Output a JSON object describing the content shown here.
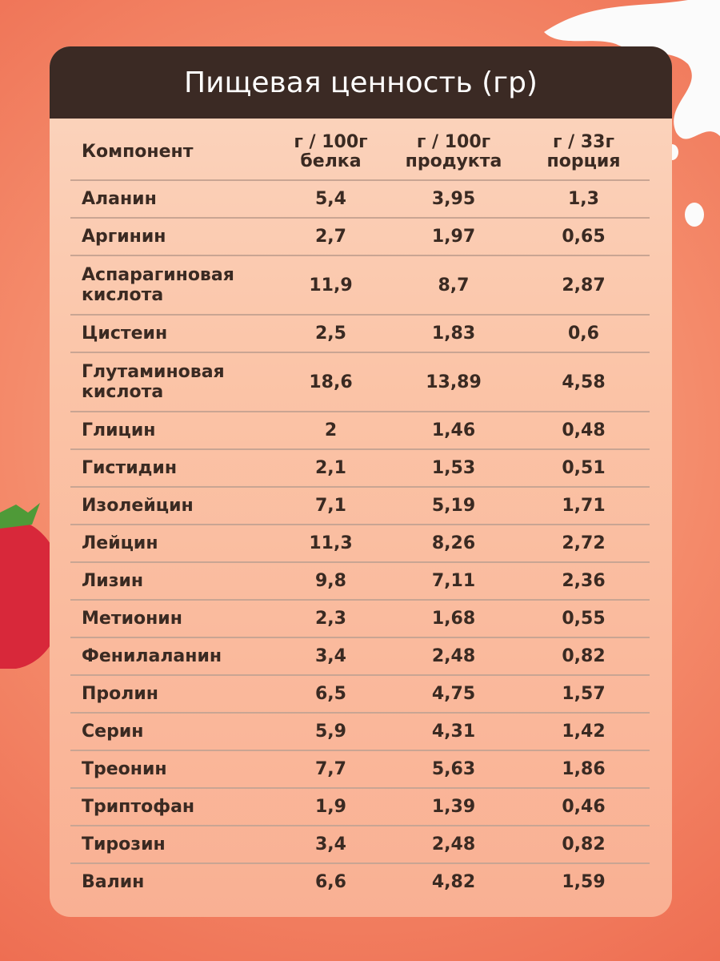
{
  "header": {
    "title": "Пищевая ценность (гр)"
  },
  "table": {
    "columns": [
      [
        "Компонент"
      ],
      [
        "г / 100г",
        "белка"
      ],
      [
        "г / 100г",
        "продукта"
      ],
      [
        "г / 33г",
        "порция"
      ]
    ],
    "rows": [
      [
        "Аланин",
        "5,4",
        "3,95",
        "1,3"
      ],
      [
        "Аргинин",
        "2,7",
        "1,97",
        "0,65"
      ],
      [
        "Аспарагиновая кислота",
        "11,9",
        "8,7",
        "2,87"
      ],
      [
        "Цистеин",
        "2,5",
        "1,83",
        "0,6"
      ],
      [
        "Глутаминовая кислота",
        "18,6",
        "13,89",
        "4,58"
      ],
      [
        "Глицин",
        "2",
        "1,46",
        "0,48"
      ],
      [
        "Гистидин",
        "2,1",
        "1,53",
        "0,51"
      ],
      [
        "Изолейцин",
        "7,1",
        "5,19",
        "1,71"
      ],
      [
        "Лейцин",
        "11,3",
        "8,26",
        "2,72"
      ],
      [
        "Лизин",
        "9,8",
        "7,11",
        "2,36"
      ],
      [
        "Метионин",
        "2,3",
        "1,68",
        "0,55"
      ],
      [
        "Фенилаланин",
        "3,4",
        "2,48",
        "0,82"
      ],
      [
        "Пролин",
        "6,5",
        "4,75",
        "1,57"
      ],
      [
        "Серин",
        "5,9",
        "4,31",
        "1,42"
      ],
      [
        "Треонин",
        "7,7",
        "5,63",
        "1,86"
      ],
      [
        "Триптофан",
        "1,9",
        "1,39",
        "0,46"
      ],
      [
        "Тирозин",
        "3,4",
        "2,48",
        "0,82"
      ],
      [
        "Валин",
        "6,6",
        "4,82",
        "1,59"
      ]
    ]
  }
}
